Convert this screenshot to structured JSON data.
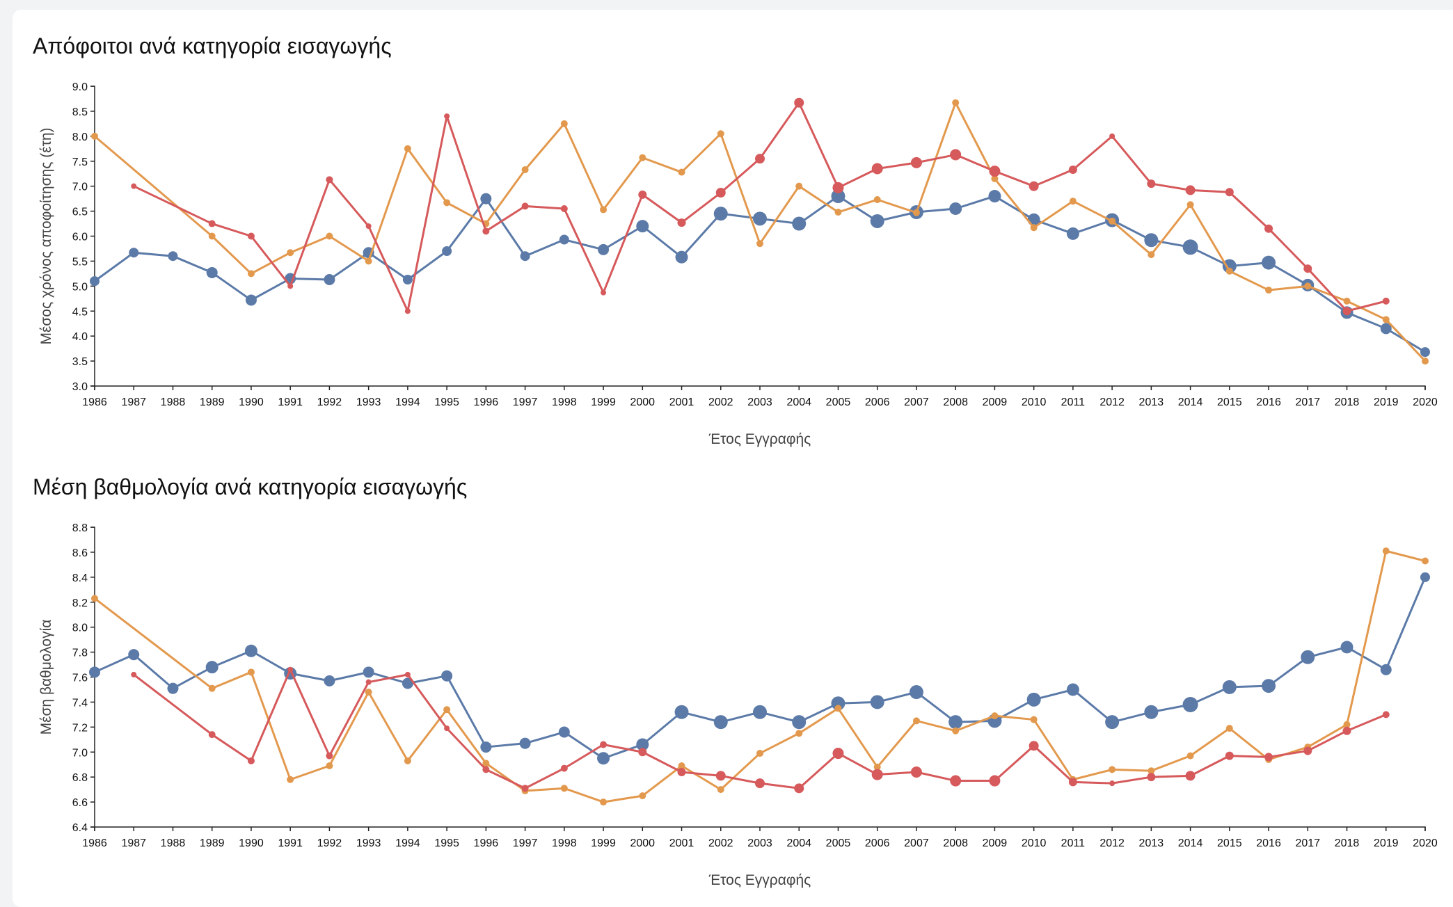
{
  "chart_data": [
    {
      "type": "line",
      "title": "Απόφοιτοι ανά κατηγορία εισαγωγής",
      "xlabel": "Έτος Εγγραφής",
      "ylabel": "Μέσος χρόνος αποφοίτησης (έτη)",
      "ylim": [
        3.0,
        9.0
      ],
      "yticks": [
        "3.0",
        "3.5",
        "4.0",
        "4.5",
        "5.0",
        "5.5",
        "6.0",
        "6.5",
        "7.0",
        "7.5",
        "8.0",
        "8.5",
        "9.0"
      ],
      "grid": false,
      "x": [
        1986,
        1987,
        1988,
        1989,
        1990,
        1991,
        1992,
        1993,
        1994,
        1995,
        1996,
        1997,
        1998,
        1999,
        2000,
        2001,
        2002,
        2003,
        2004,
        2005,
        2006,
        2007,
        2008,
        2009,
        2010,
        2011,
        2012,
        2013,
        2014,
        2015,
        2016,
        2017,
        2018,
        2019,
        2020
      ],
      "series": [
        {
          "color": "#5b7aa8",
          "values": [
            5.1,
            5.67,
            5.6,
            5.27,
            4.72,
            5.15,
            5.13,
            5.67,
            5.13,
            5.7,
            6.75,
            5.6,
            5.93,
            5.73,
            6.2,
            5.58,
            6.45,
            6.35,
            6.25,
            6.8,
            6.3,
            6.48,
            6.55,
            6.8,
            6.33,
            6.05,
            6.32,
            5.92,
            5.78,
            5.4,
            5.47,
            5.02,
            4.47,
            4.15,
            3.68
          ],
          "sizes": [
            7,
            7,
            7,
            8,
            8,
            8,
            8,
            8,
            7,
            7,
            8,
            7,
            7,
            8,
            9,
            9,
            10,
            10,
            10,
            10,
            10,
            10,
            9,
            9,
            9,
            9,
            10,
            10,
            11,
            10,
            10,
            9,
            9,
            8,
            7
          ]
        },
        {
          "color": "#e3994d",
          "values": [
            8.0,
            null,
            null,
            6.0,
            5.25,
            5.67,
            6.0,
            5.5,
            7.75,
            6.67,
            6.25,
            7.33,
            8.25,
            6.53,
            7.57,
            7.28,
            8.05,
            5.85,
            7.0,
            6.48,
            6.73,
            6.47,
            8.67,
            7.15,
            6.17,
            6.7,
            6.3,
            5.63,
            6.63,
            5.3,
            4.92,
            5.0,
            4.7,
            4.33,
            3.5
          ],
          "sizes": [
            5,
            0,
            0,
            5,
            5,
            5,
            5,
            5,
            5,
            5,
            5,
            5,
            5,
            5,
            5,
            5,
            5,
            5,
            5,
            5,
            5,
            5,
            5,
            5,
            5,
            5,
            5,
            5,
            5,
            5,
            5,
            5,
            5,
            5,
            5
          ]
        },
        {
          "color": "#d6595b",
          "values": [
            null,
            7.0,
            null,
            6.25,
            6.0,
            5.0,
            7.13,
            6.2,
            4.5,
            8.4,
            6.1,
            6.6,
            6.55,
            4.87,
            6.83,
            6.27,
            6.87,
            7.55,
            8.67,
            6.97,
            7.35,
            7.47,
            7.63,
            7.3,
            7.0,
            7.33,
            8.0,
            7.05,
            6.92,
            6.88,
            6.15,
            5.35,
            4.5,
            4.7,
            null
          ],
          "sizes": [
            0,
            4,
            0,
            5,
            5,
            4,
            5,
            4,
            4,
            4,
            5,
            5,
            5,
            4,
            6,
            6,
            7,
            7,
            7,
            8,
            8,
            8,
            8,
            8,
            7,
            6,
            4,
            6,
            7,
            6,
            6,
            6,
            6,
            5,
            0
          ]
        }
      ]
    },
    {
      "type": "line",
      "title": "Μέση βαθμολογία ανά κατηγορία εισαγωγής",
      "xlabel": "Έτος Εγγραφής",
      "ylabel": "Μέση βαθμολογία",
      "ylim": [
        6.4,
        8.8
      ],
      "yticks": [
        "6.4",
        "6.6",
        "6.8",
        "7.0",
        "7.2",
        "7.4",
        "7.6",
        "7.8",
        "8.0",
        "8.2",
        "8.4",
        "8.6",
        "8.8"
      ],
      "grid": false,
      "x": [
        1986,
        1987,
        1988,
        1989,
        1990,
        1991,
        1992,
        1993,
        1994,
        1995,
        1996,
        1997,
        1998,
        1999,
        2000,
        2001,
        2002,
        2003,
        2004,
        2005,
        2006,
        2007,
        2008,
        2009,
        2010,
        2011,
        2012,
        2013,
        2014,
        2015,
        2016,
        2017,
        2018,
        2019,
        2020
      ],
      "series": [
        {
          "color": "#5b7aa8",
          "values": [
            7.64,
            7.78,
            7.51,
            7.68,
            7.81,
            7.63,
            7.57,
            7.64,
            7.55,
            7.61,
            7.04,
            7.07,
            7.16,
            6.95,
            7.06,
            7.32,
            7.24,
            7.32,
            7.24,
            7.39,
            7.4,
            7.48,
            7.24,
            7.25,
            7.42,
            7.5,
            7.24,
            7.32,
            7.38,
            7.52,
            7.53,
            7.76,
            7.84,
            7.66,
            8.4
          ],
          "sizes": [
            8,
            8,
            8,
            9,
            9,
            9,
            8,
            8,
            8,
            8,
            8,
            8,
            8,
            9,
            9,
            10,
            10,
            10,
            10,
            10,
            10,
            10,
            10,
            10,
            10,
            9,
            10,
            10,
            11,
            10,
            10,
            10,
            9,
            8,
            7
          ]
        },
        {
          "color": "#e3994d",
          "values": [
            8.23,
            null,
            null,
            7.51,
            7.64,
            6.78,
            6.89,
            7.48,
            6.93,
            7.34,
            6.91,
            6.69,
            6.71,
            6.6,
            6.65,
            6.89,
            6.7,
            6.99,
            7.15,
            7.35,
            6.88,
            7.25,
            7.17,
            7.29,
            7.26,
            6.78,
            6.86,
            6.85,
            6.97,
            7.19,
            6.94,
            7.04,
            7.22,
            8.61,
            8.53
          ],
          "sizes": [
            5,
            0,
            0,
            5,
            5,
            5,
            5,
            5,
            5,
            5,
            5,
            5,
            5,
            5,
            5,
            5,
            5,
            5,
            5,
            5,
            5,
            5,
            5,
            5,
            5,
            5,
            5,
            5,
            5,
            5,
            5,
            5,
            5,
            5,
            5
          ]
        },
        {
          "color": "#d6595b",
          "values": [
            null,
            7.62,
            null,
            7.14,
            6.93,
            7.66,
            6.97,
            7.56,
            7.62,
            7.19,
            6.86,
            6.71,
            6.87,
            7.06,
            7.0,
            6.84,
            6.81,
            6.75,
            6.71,
            6.99,
            6.82,
            6.84,
            6.77,
            6.77,
            7.05,
            6.76,
            6.75,
            6.8,
            6.81,
            6.97,
            6.96,
            7.01,
            7.17,
            7.3,
            null
          ],
          "sizes": [
            0,
            4,
            0,
            5,
            5,
            4,
            5,
            4,
            4,
            4,
            5,
            5,
            5,
            5,
            6,
            6,
            7,
            7,
            7,
            8,
            8,
            8,
            8,
            8,
            7,
            6,
            4,
            6,
            7,
            6,
            6,
            6,
            6,
            5,
            0
          ]
        }
      ]
    }
  ]
}
